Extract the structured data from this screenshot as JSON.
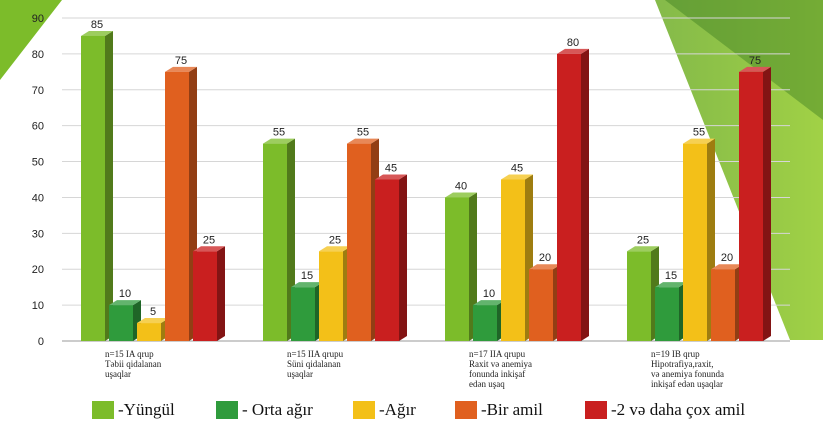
{
  "chart_data": {
    "type": "bar",
    "ylim": [
      0,
      90
    ],
    "yticks": [
      0,
      10,
      20,
      30,
      40,
      50,
      60,
      70,
      80,
      90
    ],
    "grid": true,
    "legend_placement": "bottom",
    "categories": [
      [
        "n=15 IA qrup",
        "Təbii qidalanan",
        "uşaqlar"
      ],
      [
        "n=15 IIA qrupu",
        "Süni qidalanan",
        "uşaqlar"
      ],
      [
        "n=17 IIA qrupu",
        "Raxit və anemiya",
        "fonunda inkişaf",
        "edən uşaq"
      ],
      [
        "n=19 IB qrup",
        "Hipotrafiya,raxit,",
        "və anemiya fonunda",
        "inkişaf edən uşaqlar"
      ]
    ],
    "series": [
      {
        "name": "-Yüngül",
        "color": "#7cbc2a",
        "values": [
          85,
          55,
          40,
          25
        ]
      },
      {
        "name": "- Orta ağır",
        "color": "#2f9b3c",
        "values": [
          10,
          15,
          10,
          15
        ]
      },
      {
        "name": "-Ağır",
        "color": "#f3c018",
        "values": [
          5,
          25,
          45,
          55
        ]
      },
      {
        "name": "-Bir amil",
        "color": "#e0601f",
        "values": [
          75,
          55,
          20,
          20
        ]
      },
      {
        "name": "-2 və daha çox  amil",
        "color": "#c91f1f",
        "values": [
          25,
          45,
          80,
          75
        ]
      }
    ]
  }
}
